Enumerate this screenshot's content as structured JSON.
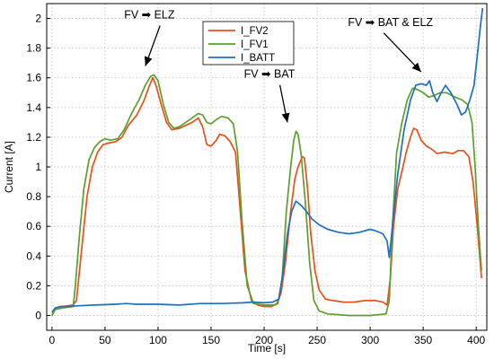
{
  "chart_data": {
    "type": "line",
    "xlabel": "Time [s]",
    "ylabel": "Current [A]",
    "xlim": [
      -5,
      410
    ],
    "ylim": [
      -0.1,
      2.1
    ],
    "xticks": [
      0,
      50,
      100,
      150,
      200,
      250,
      300,
      350,
      400
    ],
    "yticks": [
      0,
      0.2,
      0.4,
      0.6,
      0.8,
      1,
      1.2,
      1.4,
      1.6,
      1.8,
      2
    ],
    "ytick_labels": [
      "0",
      "0.2",
      "0.4",
      "0.6",
      "0.8",
      "1",
      "1.2",
      "1.4",
      "1.6",
      "1.8",
      "2"
    ],
    "grid": true,
    "legend_position": "top-center",
    "series": [
      {
        "name": "I_FV2",
        "color": "#e8501c",
        "points": [
          [
            0,
            0.0
          ],
          [
            3,
            0.05
          ],
          [
            10,
            0.06
          ],
          [
            20,
            0.07
          ],
          [
            23,
            0.1
          ],
          [
            28,
            0.45
          ],
          [
            33,
            0.8
          ],
          [
            38,
            1.0
          ],
          [
            43,
            1.1
          ],
          [
            48,
            1.15
          ],
          [
            53,
            1.16
          ],
          [
            60,
            1.17
          ],
          [
            66,
            1.2
          ],
          [
            72,
            1.28
          ],
          [
            80,
            1.35
          ],
          [
            87,
            1.45
          ],
          [
            92,
            1.55
          ],
          [
            95,
            1.6
          ],
          [
            98,
            1.55
          ],
          [
            103,
            1.42
          ],
          [
            108,
            1.3
          ],
          [
            113,
            1.25
          ],
          [
            120,
            1.26
          ],
          [
            126,
            1.28
          ],
          [
            132,
            1.3
          ],
          [
            138,
            1.33
          ],
          [
            142,
            1.27
          ],
          [
            146,
            1.15
          ],
          [
            150,
            1.14
          ],
          [
            155,
            1.18
          ],
          [
            158,
            1.22
          ],
          [
            163,
            1.21
          ],
          [
            168,
            1.17
          ],
          [
            173,
            1.1
          ],
          [
            177,
            0.75
          ],
          [
            182,
            0.3
          ],
          [
            188,
            0.1
          ],
          [
            194,
            0.07
          ],
          [
            200,
            0.06
          ],
          [
            207,
            0.06
          ],
          [
            212,
            0.08
          ],
          [
            216,
            0.15
          ],
          [
            220,
            0.35
          ],
          [
            225,
            0.7
          ],
          [
            229,
            0.92
          ],
          [
            232,
            1.0
          ],
          [
            236,
            1.07
          ],
          [
            238,
            1.06
          ],
          [
            241,
            0.85
          ],
          [
            244,
            0.55
          ],
          [
            248,
            0.3
          ],
          [
            252,
            0.17
          ],
          [
            258,
            0.11
          ],
          [
            265,
            0.1
          ],
          [
            275,
            0.09
          ],
          [
            285,
            0.09
          ],
          [
            295,
            0.1
          ],
          [
            305,
            0.1
          ],
          [
            312,
            0.09
          ],
          [
            316,
            0.07
          ],
          [
            319,
            0.25
          ],
          [
            322,
            0.6
          ],
          [
            326,
            0.85
          ],
          [
            330,
            0.97
          ],
          [
            334,
            1.1
          ],
          [
            338,
            1.2
          ],
          [
            341,
            1.26
          ],
          [
            344,
            1.25
          ],
          [
            348,
            1.18
          ],
          [
            353,
            1.14
          ],
          [
            358,
            1.12
          ],
          [
            363,
            1.09
          ],
          [
            370,
            1.1
          ],
          [
            378,
            1.09
          ],
          [
            383,
            1.11
          ],
          [
            388,
            1.11
          ],
          [
            393,
            1.07
          ],
          [
            397,
            0.9
          ],
          [
            401,
            0.6
          ],
          [
            405,
            0.25
          ]
        ]
      },
      {
        "name": "I_FV1",
        "color": "#5aa02c",
        "points": [
          [
            0,
            0.0
          ],
          [
            3,
            0.04
          ],
          [
            10,
            0.05
          ],
          [
            20,
            0.06
          ],
          [
            22,
            0.2
          ],
          [
            26,
            0.55
          ],
          [
            30,
            0.85
          ],
          [
            35,
            1.05
          ],
          [
            40,
            1.13
          ],
          [
            45,
            1.17
          ],
          [
            50,
            1.19
          ],
          [
            55,
            1.18
          ],
          [
            62,
            1.19
          ],
          [
            68,
            1.25
          ],
          [
            75,
            1.36
          ],
          [
            82,
            1.45
          ],
          [
            88,
            1.55
          ],
          [
            93,
            1.61
          ],
          [
            96,
            1.62
          ],
          [
            100,
            1.58
          ],
          [
            105,
            1.42
          ],
          [
            110,
            1.3
          ],
          [
            115,
            1.26
          ],
          [
            120,
            1.27
          ],
          [
            126,
            1.3
          ],
          [
            132,
            1.33
          ],
          [
            138,
            1.36
          ],
          [
            142,
            1.35
          ],
          [
            146,
            1.3
          ],
          [
            150,
            1.29
          ],
          [
            155,
            1.32
          ],
          [
            160,
            1.34
          ],
          [
            166,
            1.33
          ],
          [
            171,
            1.29
          ],
          [
            175,
            1.1
          ],
          [
            179,
            0.65
          ],
          [
            184,
            0.2
          ],
          [
            190,
            0.08
          ],
          [
            200,
            0.07
          ],
          [
            210,
            0.07
          ],
          [
            213,
            0.08
          ],
          [
            217,
            0.25
          ],
          [
            221,
            0.7
          ],
          [
            225,
            1.0
          ],
          [
            228,
            1.18
          ],
          [
            230,
            1.24
          ],
          [
            232,
            1.22
          ],
          [
            235,
            1.08
          ],
          [
            239,
            0.75
          ],
          [
            243,
            0.35
          ],
          [
            247,
            0.1
          ],
          [
            252,
            0.03
          ],
          [
            260,
            0.01
          ],
          [
            280,
            0.0
          ],
          [
            300,
            0.0
          ],
          [
            315,
            0.01
          ],
          [
            318,
            0.1
          ],
          [
            321,
            0.6
          ],
          [
            325,
            1.1
          ],
          [
            330,
            1.3
          ],
          [
            335,
            1.45
          ],
          [
            340,
            1.53
          ],
          [
            345,
            1.52
          ],
          [
            350,
            1.5
          ],
          [
            355,
            1.47
          ],
          [
            360,
            1.48
          ],
          [
            366,
            1.5
          ],
          [
            372,
            1.5
          ],
          [
            380,
            1.47
          ],
          [
            387,
            1.45
          ],
          [
            392,
            1.42
          ],
          [
            396,
            1.3
          ],
          [
            399,
            1.0
          ],
          [
            402,
            0.6
          ],
          [
            405,
            0.3
          ]
        ]
      },
      {
        "name": "I_BATT",
        "color": "#1f6fc0",
        "points": [
          [
            0,
            0.02
          ],
          [
            3,
            0.05
          ],
          [
            8,
            0.06
          ],
          [
            15,
            0.06
          ],
          [
            25,
            0.065
          ],
          [
            40,
            0.07
          ],
          [
            60,
            0.075
          ],
          [
            70,
            0.08
          ],
          [
            80,
            0.075
          ],
          [
            100,
            0.075
          ],
          [
            120,
            0.07
          ],
          [
            140,
            0.08
          ],
          [
            160,
            0.08
          ],
          [
            180,
            0.085
          ],
          [
            190,
            0.09
          ],
          [
            200,
            0.085
          ],
          [
            208,
            0.09
          ],
          [
            214,
            0.11
          ],
          [
            218,
            0.3
          ],
          [
            222,
            0.55
          ],
          [
            226,
            0.7
          ],
          [
            230,
            0.77
          ],
          [
            235,
            0.74
          ],
          [
            240,
            0.7
          ],
          [
            245,
            0.65
          ],
          [
            252,
            0.61
          ],
          [
            260,
            0.58
          ],
          [
            270,
            0.56
          ],
          [
            280,
            0.55
          ],
          [
            290,
            0.56
          ],
          [
            300,
            0.58
          ],
          [
            305,
            0.57
          ],
          [
            312,
            0.55
          ],
          [
            316,
            0.5
          ],
          [
            318,
            0.39
          ],
          [
            321,
            0.6
          ],
          [
            326,
            0.95
          ],
          [
            332,
            1.25
          ],
          [
            338,
            1.45
          ],
          [
            343,
            1.55
          ],
          [
            348,
            1.56
          ],
          [
            353,
            1.55
          ],
          [
            356,
            1.58
          ],
          [
            359,
            1.5
          ],
          [
            363,
            1.44
          ],
          [
            367,
            1.5
          ],
          [
            371,
            1.55
          ],
          [
            376,
            1.5
          ],
          [
            382,
            1.42
          ],
          [
            386,
            1.35
          ],
          [
            390,
            1.37
          ],
          [
            394,
            1.45
          ],
          [
            398,
            1.55
          ],
          [
            401,
            1.75
          ],
          [
            404,
            1.95
          ],
          [
            406,
            2.07
          ]
        ]
      }
    ],
    "annotations": [
      {
        "text": "FV ➡ ELZ",
        "x": 68,
        "y": 2.0,
        "arrow_to": [
          88,
          1.68
        ]
      },
      {
        "text": "FV ➡ BAT",
        "x": 181,
        "y": 1.6,
        "arrow_to": [
          222,
          1.3
        ]
      },
      {
        "text": "FV ➡ BAT & ELZ",
        "x": 279,
        "y": 1.95,
        "arrow_to": [
          348,
          1.64
        ]
      }
    ]
  }
}
